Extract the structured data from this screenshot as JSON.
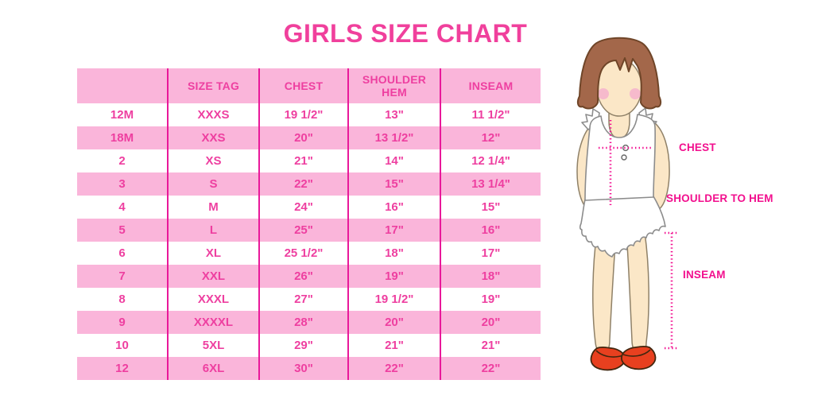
{
  "title": "GIRLS SIZE CHART",
  "table": {
    "columns": [
      "",
      "SIZE TAG",
      "CHEST",
      "SHOULDER HEM",
      "INSEAM"
    ],
    "rows": [
      [
        "12M",
        "XXXS",
        "19 1/2\"",
        "13\"",
        "11 1/2\""
      ],
      [
        "18M",
        "XXS",
        "20\"",
        "13 1/2\"",
        "12\""
      ],
      [
        "2",
        "XS",
        "21\"",
        "14\"",
        "12 1/4\""
      ],
      [
        "3",
        "S",
        "22\"",
        "15\"",
        "13 1/4\""
      ],
      [
        "4",
        "M",
        "24\"",
        "16\"",
        "15\""
      ],
      [
        "5",
        "L",
        "25\"",
        "17\"",
        "16\""
      ],
      [
        "6",
        "XL",
        "25 1/2\"",
        "18\"",
        "17\""
      ],
      [
        "7",
        "XXL",
        "26\"",
        "19\"",
        "18\""
      ],
      [
        "8",
        "XXXL",
        "27\"",
        "19 1/2\"",
        "19\""
      ],
      [
        "9",
        "XXXXL",
        "28\"",
        "20\"",
        "20\""
      ],
      [
        "10",
        "5XL",
        "29\"",
        "21\"",
        "21\""
      ],
      [
        "12",
        "6XL",
        "30\"",
        "22\"",
        "22\""
      ]
    ]
  },
  "figure": {
    "chest_label": "CHEST",
    "shoulder_label": "SHOULDER TO HEM",
    "inseam_label": "INSEAM"
  },
  "colors": {
    "title-pink": "#F0409C",
    "band-pink": "#FAB5DA",
    "divider-pink": "#E9189A",
    "cell-text-pink": "#EE3FA0",
    "label-magenta": "#F2108E",
    "dotted-pink": "#F20C8F",
    "hair-brown": "#A3674A",
    "hair-outline": "#6F4528",
    "skin": "#FBE7C7",
    "skin-outline": "#8F8168",
    "blush": "#F5AFCD",
    "garment-outline": "#8C8C8C",
    "shoe-red": "#E8401F",
    "shoe-outline": "#43270F"
  }
}
